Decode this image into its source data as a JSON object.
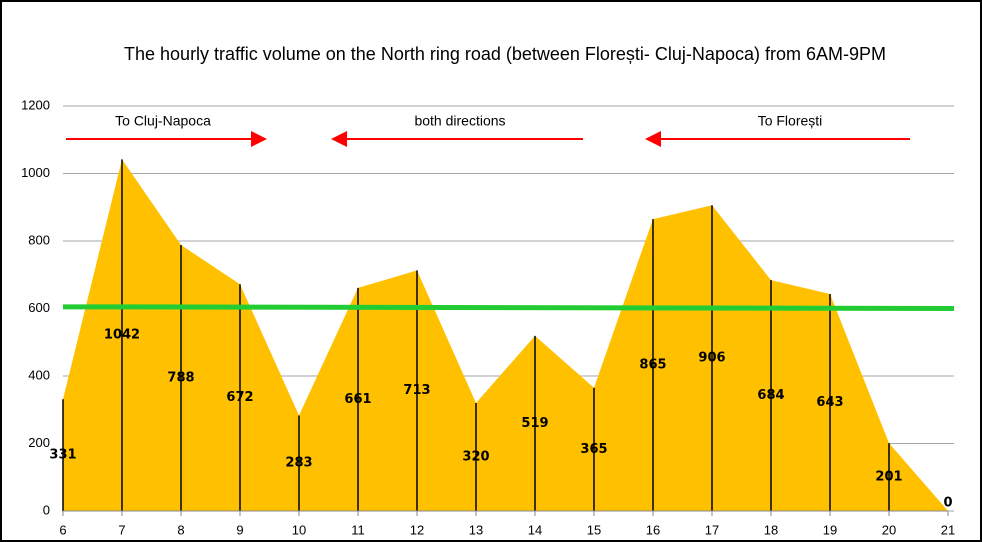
{
  "chart_data": {
    "type": "area",
    "title": "The hourly traffic volume on the North ring road  (between Florești- Cluj-Napoca) from 6AM-9PM",
    "x": [
      6,
      7,
      8,
      9,
      10,
      11,
      12,
      13,
      14,
      15,
      16,
      17,
      18,
      19,
      20,
      21
    ],
    "values": [
      331,
      1042,
      788,
      672,
      283,
      661,
      713,
      320,
      519,
      365,
      865,
      906,
      684,
      643,
      201,
      0
    ],
    "color": "#ffc000",
    "xlim": [
      6,
      21
    ],
    "xticks": [
      6,
      7,
      8,
      9,
      10,
      11,
      12,
      13,
      14,
      15,
      16,
      17,
      18,
      19,
      20,
      21
    ],
    "ylim": [
      0,
      1200
    ],
    "yticks": [
      0,
      200,
      400,
      600,
      800,
      1000,
      1200
    ],
    "grid": true,
    "threshold": {
      "values": [
        605,
        600
      ],
      "color": "#22cc33"
    },
    "annotations": [
      "To Cluj-Napoca",
      "both directions",
      "To Florești"
    ],
    "arrow_color": "#ff0000"
  }
}
